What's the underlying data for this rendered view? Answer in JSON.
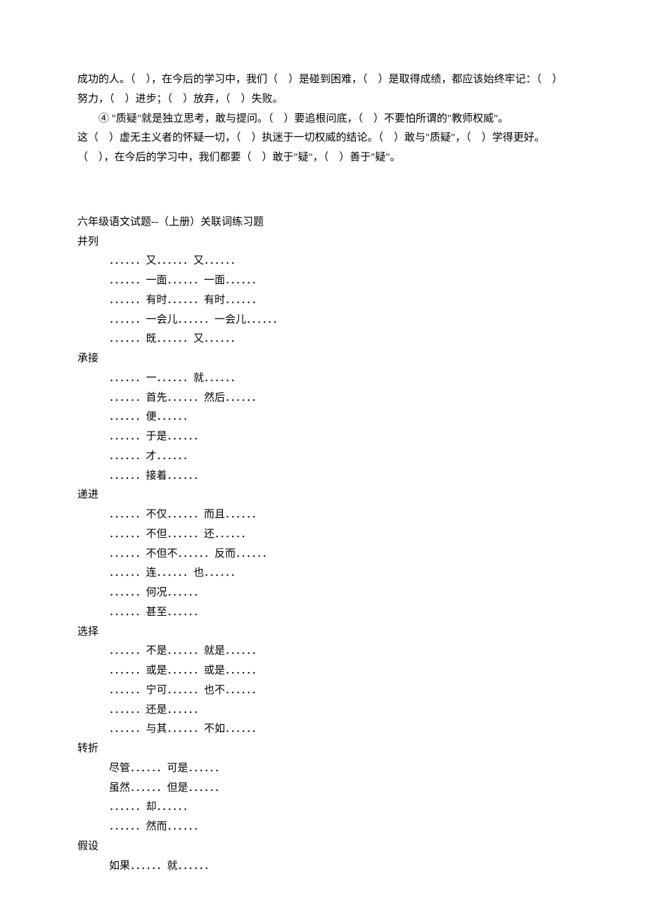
{
  "intro": {
    "p1": "成功的人。（　），在今后的学习中，我们（　）是碰到困难，（　）是取得成绩，都应该始终牢记：（　）努力，（　）进步；（　）放弃，（　）失败。",
    "p2a": "　　④ \"质疑\"就是独立思考，敢与提问。（　）要追根问底，（　）不要怕所谓的\"教师权威\"。",
    "p2b": "这（　）虚无主义者的怀疑一切，（　）执迷于一切权威的结论。（　）敢与\"质疑\"，（　）学得更好。（　），在今后的学习中，我们都要（　）敢于\"疑\"，（　）善于\"疑\"。"
  },
  "title": "六年级语文试题--（上册）关联词练习题",
  "cats": [
    {
      "label": "并列",
      "items": [
        "．．．．．．又．．．．．．又．．．．．．",
        "．．．．．．一面．．．．．．一面．．．．．．",
        "．．．．．．有时．．．．．．有时．．．．．．",
        "．．．．．．一会儿．．．．．．一会儿．．．．．．",
        "．．．．．．既．．．．．．又．．．．．．"
      ]
    },
    {
      "label": "承接",
      "items": [
        "．．．．．．一．．．．．．就．．．．．．",
        "．．．．．．首先．．．．．．然后．．．．．．",
        "．．．．．．便．．．．．．",
        "．．．．．．于是．．．．．．",
        "．．．．．．才．．．．．．",
        "．．．．．．接着．．．．．．"
      ]
    },
    {
      "label": "递进",
      "items": [
        "．．．．．．不仅．．．．．．而且．．．．．．",
        "．．．．．．不但．．．．．．还．．．．．．",
        "．．．．．．不但不．．．．．．反而．．．．．．",
        "．．．．．．连．．．．．．也．．．．．．",
        "．．．．．．何况．．．．．．",
        "．．．．．．甚至．．．．．．"
      ]
    },
    {
      "label": "选择",
      "items": [
        "．．．．．．不是．．．．．．就是．．．．．．",
        "．．．．．．或是．．．．．．或是．．．．．．",
        "．．．．．．宁可．．．．．．也不．．．．．．",
        "．．．．．．还是．．．．．．",
        "．．．．．．与其．．．．．．不如．．．．．．"
      ]
    },
    {
      "label": "转折",
      "items": [
        "尽管．．．．．．可是．．．．．．",
        "虽然．．．．．．但是．．．．．．",
        "．．．．．．却．．．．．．",
        "．．．．．．然而．．．．．．"
      ]
    },
    {
      "label": "假设",
      "items": [
        "如果．．．．．．就．．．．．．"
      ]
    }
  ]
}
